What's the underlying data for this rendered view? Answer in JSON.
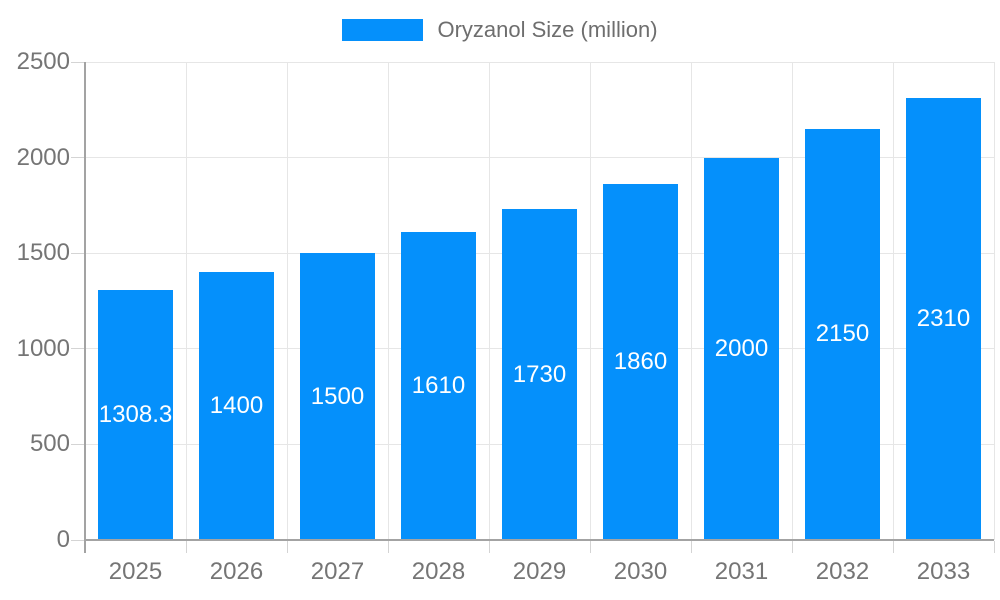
{
  "chart_data": {
    "type": "bar",
    "title": "",
    "series_name": "Oryzanol Size (million)",
    "categories": [
      "2025",
      "2026",
      "2027",
      "2028",
      "2029",
      "2030",
      "2031",
      "2032",
      "2033"
    ],
    "values": [
      1308.3,
      1400,
      1500,
      1610,
      1730,
      1860,
      2000,
      2150,
      2310
    ],
    "bar_labels": [
      "1308.3",
      "1400",
      "1500",
      "1610",
      "1730",
      "1860",
      "2000",
      "2150",
      "2310"
    ],
    "xlabel": "",
    "ylabel": "",
    "ylim": [
      0,
      2500
    ],
    "yticks": [
      0,
      500,
      1000,
      1500,
      2000,
      2500
    ],
    "ytick_labels": [
      "0",
      "500",
      "1000",
      "1500",
      "2000",
      "2500"
    ],
    "grid": "horizontal value lines and vertical category-boundary lines",
    "legend_position": "top-center",
    "colors": {
      "bar": "#0590fb",
      "bar_label_text": "#ffffff",
      "axis_text": "#757575",
      "gridline": "#e6e6e6",
      "axis_line": "#a3a3a3",
      "tick": "#d4d4d4",
      "background": "#ffffff"
    }
  }
}
